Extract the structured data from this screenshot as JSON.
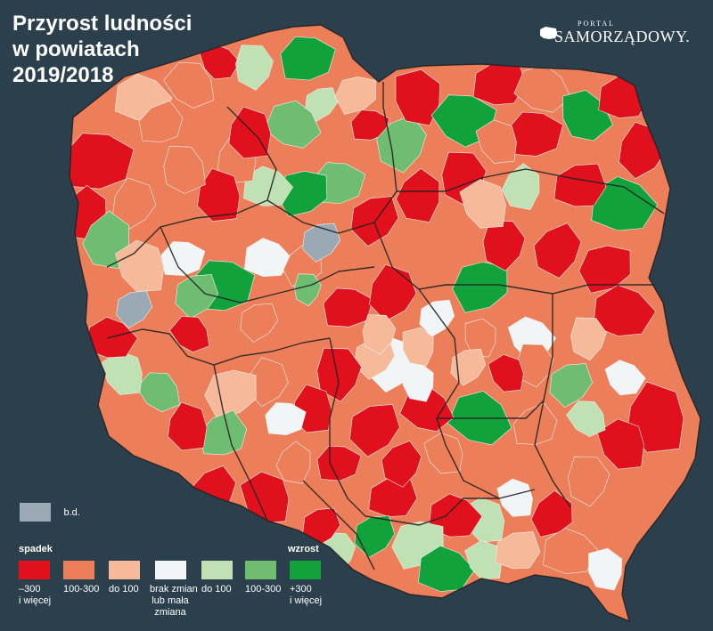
{
  "title": {
    "line1": "Przyrost ludności",
    "line2": "w powiatach",
    "line3": "2019/2018"
  },
  "brand": {
    "small": "PORTAL",
    "name": "SAMORZĄDOWY",
    "dot": ".",
    "logo_icon": "poland-map-icon"
  },
  "legend": {
    "no_data": {
      "label": "b.d.",
      "color": "#9aa9b3"
    },
    "decline_label": "spadek",
    "growth_label": "wzrost",
    "categories": [
      {
        "color": "#e0101c",
        "line1": "–300",
        "line2": "i więcej",
        "line3": ""
      },
      {
        "color": "#ec7f5a",
        "line1": "100-300",
        "line2": "",
        "line3": ""
      },
      {
        "color": "#f6b99a",
        "line1": "do 100",
        "line2": "",
        "line3": ""
      },
      {
        "color": "#f2f5f5",
        "line1": "brak zmian",
        "line2": "lub mała",
        "line3": "zmiana"
      },
      {
        "color": "#bfe1b4",
        "line1": "do 100",
        "line2": "",
        "line3": ""
      },
      {
        "color": "#6fbd70",
        "line1": "100-300",
        "line2": "",
        "line3": ""
      },
      {
        "color": "#12a23c",
        "line1": "+300",
        "line2": "i więcej",
        "line3": ""
      }
    ]
  },
  "map": {
    "land_color": "#ec7f5a",
    "border_color": "#222222"
  }
}
